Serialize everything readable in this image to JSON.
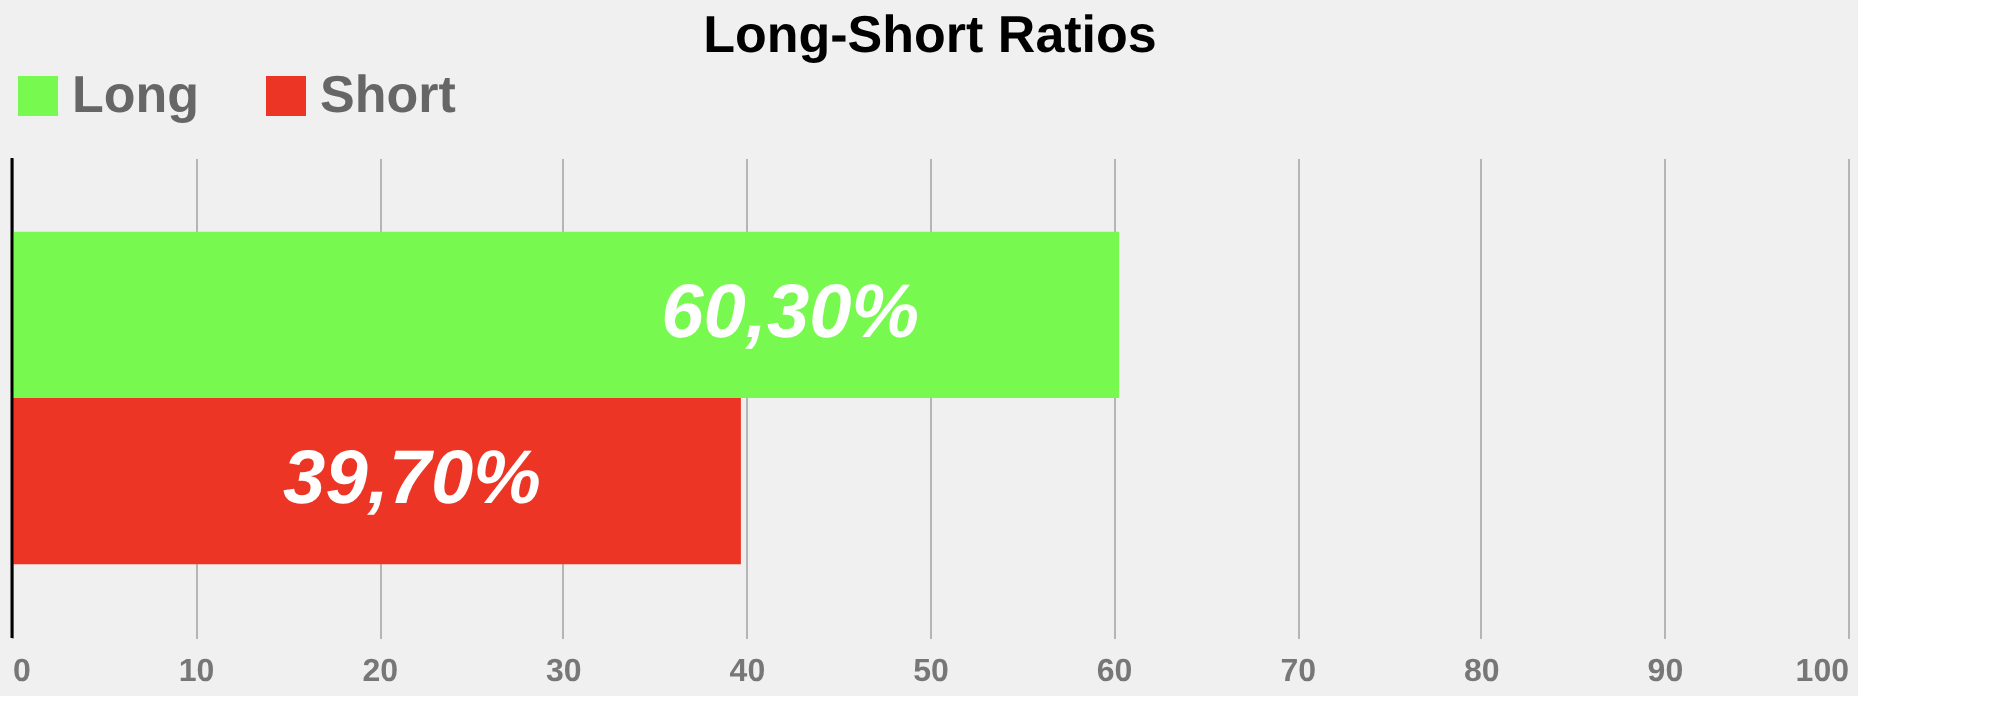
{
  "chart_data": {
    "type": "bar",
    "title": "Long-Short Ratios",
    "orientation": "horizontal",
    "categories": [
      null
    ],
    "series": [
      {
        "name": "Long",
        "color": "#77f94f",
        "values": [
          60.3
        ],
        "value_labels": [
          "60,30%"
        ]
      },
      {
        "name": "Short",
        "color": "#ec3524",
        "values": [
          39.7
        ],
        "value_labels": [
          "39,70%"
        ]
      }
    ],
    "xlim": [
      0,
      100
    ],
    "xticks": [
      0,
      10,
      20,
      30,
      40,
      50,
      60,
      70,
      80,
      90,
      100
    ],
    "grid": "x",
    "legend": "top",
    "tick_labels": "x"
  }
}
